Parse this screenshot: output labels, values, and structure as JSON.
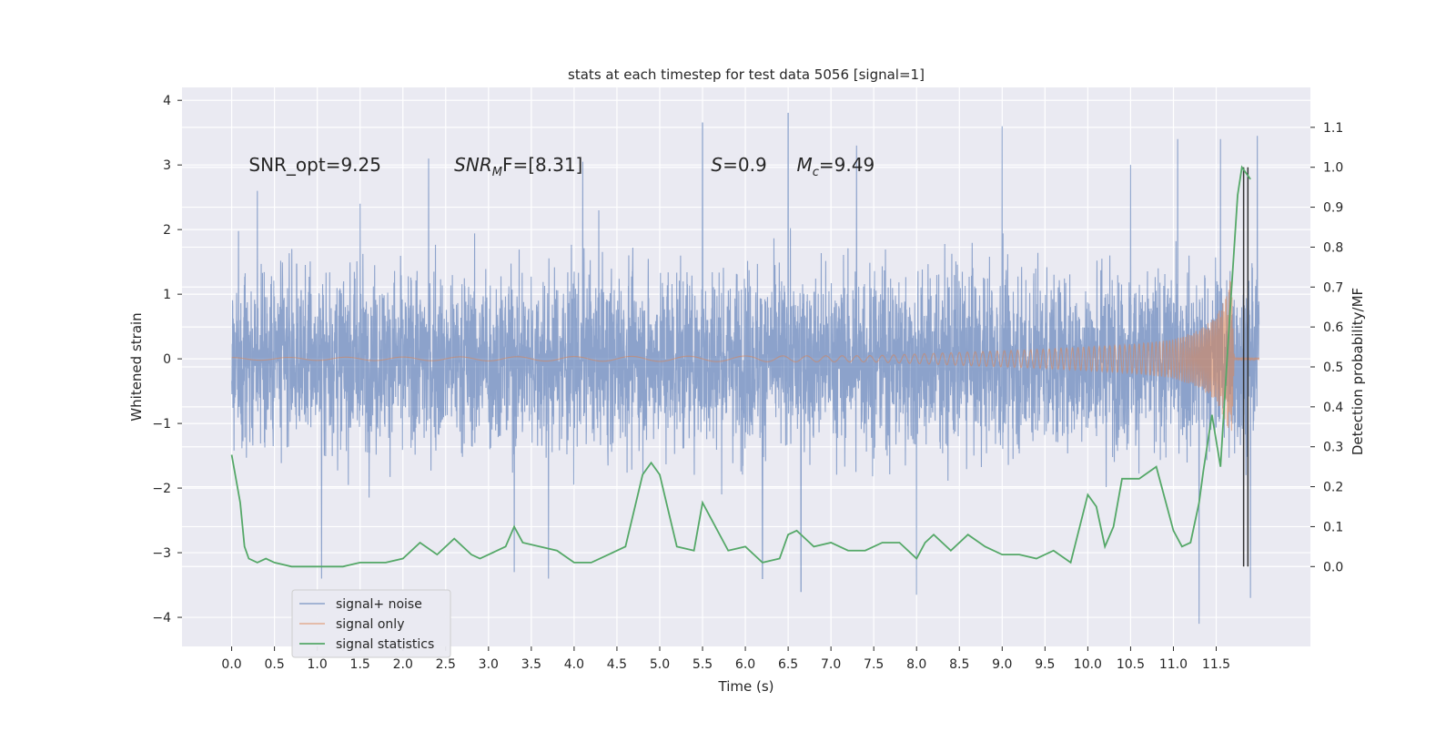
{
  "chart_data": {
    "type": "line",
    "title": "stats at each timestep for test data 5056 [signal=1]",
    "xlabel": "Time (s)",
    "ylabel": "Whitened strain",
    "ylabel_right": "Detection probability/MF",
    "xlim": [
      -0.58,
      12.6
    ],
    "ylim": [
      -4.45,
      4.2
    ],
    "ylim_right": [
      -0.2,
      1.2
    ],
    "grid": true,
    "legend_position": "lower-left",
    "x_ticks": [
      "0.0",
      "0.5",
      "1.0",
      "1.5",
      "2.0",
      "2.5",
      "3.0",
      "3.5",
      "4.0",
      "4.5",
      "5.0",
      "5.5",
      "6.0",
      "6.5",
      "7.0",
      "7.5",
      "8.0",
      "8.5",
      "9.0",
      "9.5",
      "10.0",
      "10.5",
      "11.0",
      "11.5"
    ],
    "y_ticks": [
      "4",
      "3",
      "2",
      "1",
      "0",
      "−1",
      "−2",
      "−3",
      "−4"
    ],
    "y_ticks_right": [
      "1.1",
      "1.0",
      "0.9",
      "0.8",
      "0.7",
      "0.6",
      "0.5",
      "0.4",
      "0.3",
      "0.2",
      "0.1",
      "0.0"
    ],
    "annotations": [
      {
        "text": "SNR_opt=9.25",
        "x": 0.2,
        "y": 3.0
      },
      {
        "text": "SNR",
        "sub": "M",
        "tail": "F=[8.31]",
        "x": 2.6,
        "y": 3.0
      },
      {
        "text": "S=0.9",
        "x": 5.6,
        "y": 3.0
      },
      {
        "text": "M",
        "sub": "c",
        "tail": "=9.49",
        "x": 6.6,
        "y": 3.0
      }
    ],
    "series": [
      {
        "name": "signal+ noise",
        "color": "#4c72b0",
        "alpha": 0.5,
        "x_range": [
          0.0,
          12.0
        ],
        "samples": 4800,
        "typical_envelope": [
          -1.3,
          1.5
        ],
        "extremes": [
          {
            "x": 0.3,
            "y": 2.6
          },
          {
            "x": 1.05,
            "y": -3.4
          },
          {
            "x": 1.5,
            "y": 2.4
          },
          {
            "x": 2.3,
            "y": 3.1
          },
          {
            "x": 3.3,
            "y": -3.3
          },
          {
            "x": 3.7,
            "y": -3.4
          },
          {
            "x": 4.1,
            "y": 3.05
          },
          {
            "x": 5.5,
            "y": 3.65
          },
          {
            "x": 6.2,
            "y": -3.4
          },
          {
            "x": 6.5,
            "y": 3.8
          },
          {
            "x": 6.65,
            "y": -3.6
          },
          {
            "x": 7.3,
            "y": 3.3
          },
          {
            "x": 8.0,
            "y": -3.65
          },
          {
            "x": 9.0,
            "y": 3.6
          },
          {
            "x": 10.5,
            "y": 3.0
          },
          {
            "x": 11.05,
            "y": 3.4
          },
          {
            "x": 11.3,
            "y": -4.1
          },
          {
            "x": 11.55,
            "y": 3.4
          },
          {
            "x": 11.9,
            "y": -3.7
          },
          {
            "x": 11.98,
            "y": 3.45
          }
        ]
      },
      {
        "name": "signal only",
        "color": "#dd8452",
        "alpha": 0.5,
        "x_range": [
          0.0,
          12.0
        ],
        "envelope": [
          [
            0.0,
            0.02
          ],
          [
            7.5,
            0.05
          ],
          [
            8.5,
            0.1
          ],
          [
            9.5,
            0.15
          ],
          [
            10.5,
            0.22
          ],
          [
            11.0,
            0.3
          ],
          [
            11.3,
            0.45
          ],
          [
            11.5,
            0.65
          ],
          [
            11.6,
            0.95
          ],
          [
            11.68,
            1.3
          ],
          [
            11.71,
            0.02
          ]
        ]
      },
      {
        "name": "signal statistics",
        "color": "#55a868",
        "axis": "right",
        "points": [
          [
            0.0,
            0.28
          ],
          [
            0.1,
            0.16
          ],
          [
            0.15,
            0.05
          ],
          [
            0.2,
            0.02
          ],
          [
            0.3,
            0.01
          ],
          [
            0.4,
            0.02
          ],
          [
            0.5,
            0.01
          ],
          [
            0.7,
            0.0
          ],
          [
            1.0,
            0.0
          ],
          [
            1.3,
            0.0
          ],
          [
            1.5,
            0.01
          ],
          [
            1.8,
            0.01
          ],
          [
            2.0,
            0.02
          ],
          [
            2.2,
            0.06
          ],
          [
            2.4,
            0.03
          ],
          [
            2.6,
            0.07
          ],
          [
            2.8,
            0.03
          ],
          [
            2.9,
            0.02
          ],
          [
            3.0,
            0.03
          ],
          [
            3.2,
            0.05
          ],
          [
            3.3,
            0.1
          ],
          [
            3.4,
            0.06
          ],
          [
            3.6,
            0.05
          ],
          [
            3.8,
            0.04
          ],
          [
            4.0,
            0.01
          ],
          [
            4.2,
            0.01
          ],
          [
            4.4,
            0.03
          ],
          [
            4.6,
            0.05
          ],
          [
            4.8,
            0.23
          ],
          [
            4.9,
            0.26
          ],
          [
            5.0,
            0.23
          ],
          [
            5.2,
            0.05
          ],
          [
            5.4,
            0.04
          ],
          [
            5.5,
            0.16
          ],
          [
            5.6,
            0.12
          ],
          [
            5.8,
            0.04
          ],
          [
            6.0,
            0.05
          ],
          [
            6.2,
            0.01
          ],
          [
            6.4,
            0.02
          ],
          [
            6.5,
            0.08
          ],
          [
            6.6,
            0.09
          ],
          [
            6.8,
            0.05
          ],
          [
            7.0,
            0.06
          ],
          [
            7.2,
            0.04
          ],
          [
            7.4,
            0.04
          ],
          [
            7.6,
            0.06
          ],
          [
            7.8,
            0.06
          ],
          [
            8.0,
            0.02
          ],
          [
            8.1,
            0.06
          ],
          [
            8.2,
            0.08
          ],
          [
            8.4,
            0.04
          ],
          [
            8.6,
            0.08
          ],
          [
            8.8,
            0.05
          ],
          [
            9.0,
            0.03
          ],
          [
            9.2,
            0.03
          ],
          [
            9.4,
            0.02
          ],
          [
            9.6,
            0.04
          ],
          [
            9.8,
            0.01
          ],
          [
            10.0,
            0.18
          ],
          [
            10.1,
            0.15
          ],
          [
            10.2,
            0.05
          ],
          [
            10.3,
            0.1
          ],
          [
            10.4,
            0.22
          ],
          [
            10.6,
            0.22
          ],
          [
            10.8,
            0.25
          ],
          [
            11.0,
            0.09
          ],
          [
            11.1,
            0.05
          ],
          [
            11.2,
            0.06
          ],
          [
            11.3,
            0.16
          ],
          [
            11.35,
            0.24
          ],
          [
            11.45,
            0.38
          ],
          [
            11.55,
            0.25
          ],
          [
            11.65,
            0.6
          ],
          [
            11.75,
            0.93
          ],
          [
            11.8,
            1.0
          ],
          [
            11.9,
            0.97
          ]
        ]
      }
    ],
    "vertical_markers": [
      {
        "x": 11.82,
        "y_from": 0.0,
        "y_to": 1.0,
        "color": "#333333"
      },
      {
        "x": 11.87,
        "y_from": 0.0,
        "y_to": 1.0,
        "color": "#333333"
      }
    ]
  },
  "legend": {
    "items": [
      {
        "label": "signal+ noise",
        "color": "#4c72b0"
      },
      {
        "label": "signal only",
        "color": "#dd8452"
      },
      {
        "label": "signal statistics",
        "color": "#55a868"
      }
    ]
  },
  "colors": {
    "plot_background": "#eaeaf2",
    "grid": "#ffffff"
  }
}
